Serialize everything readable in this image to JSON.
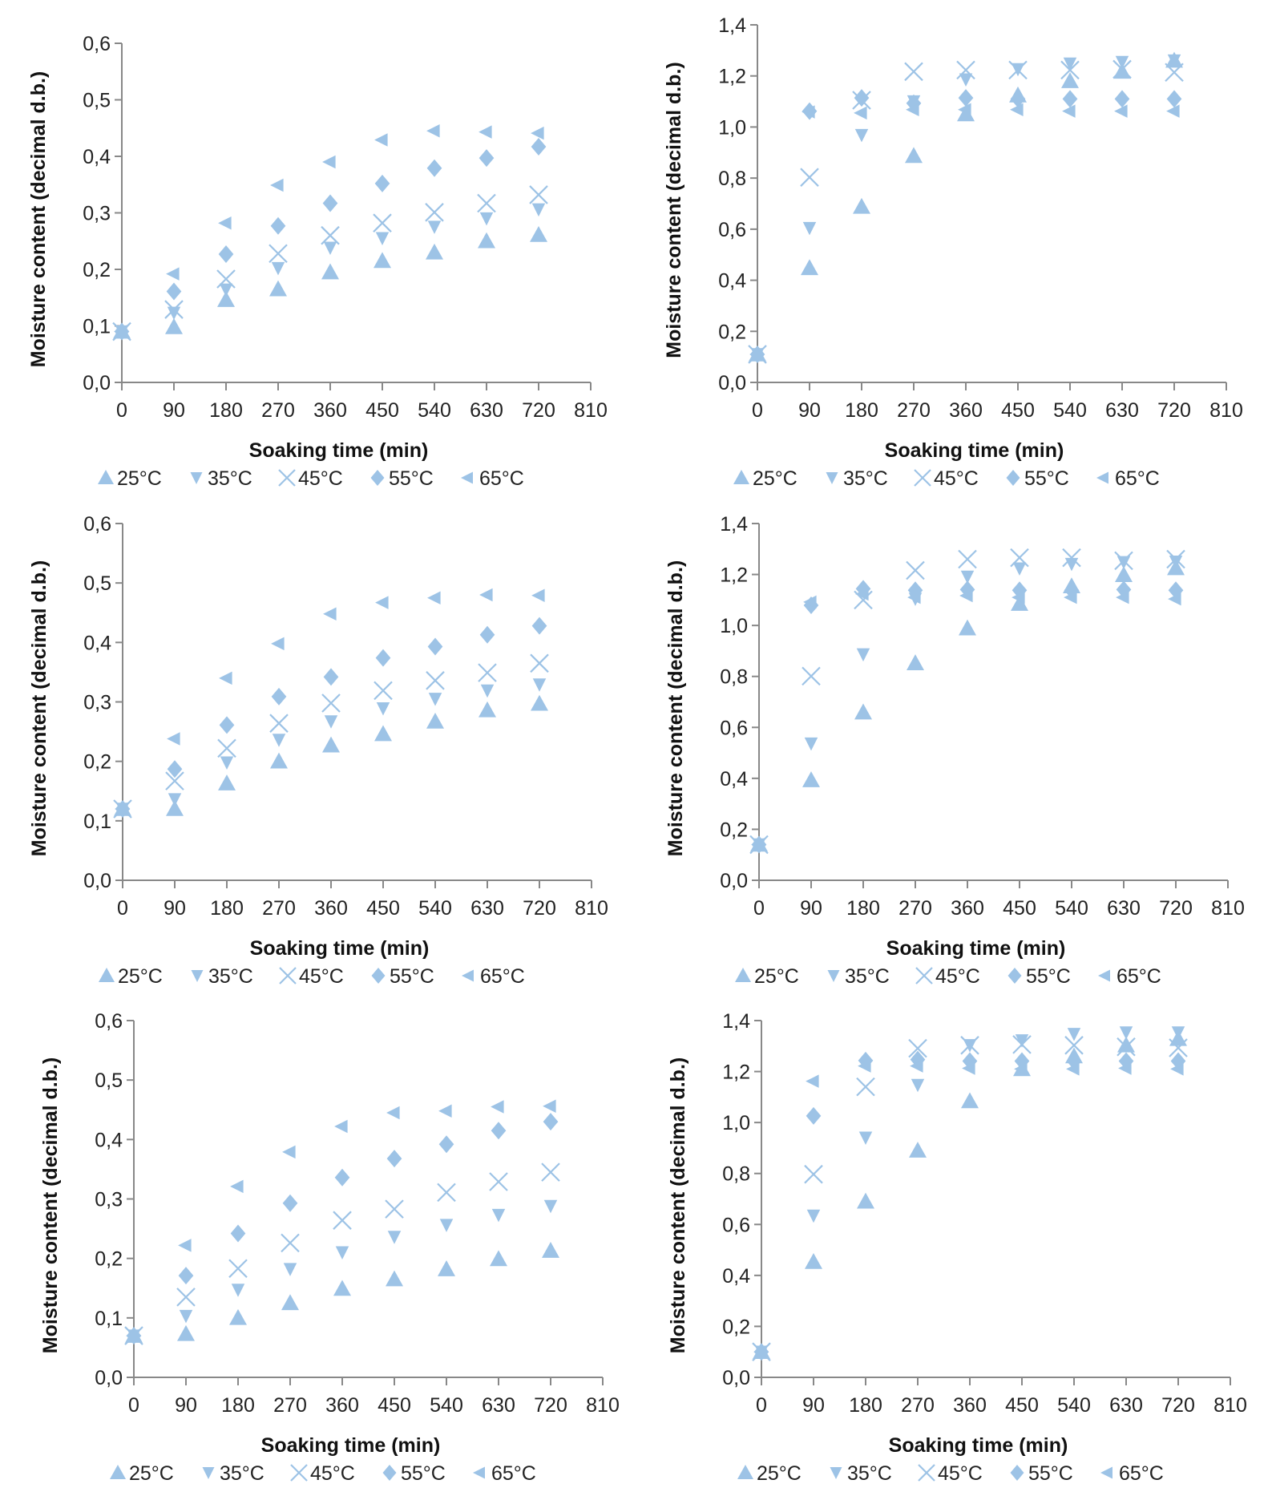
{
  "marker_color": "#9dc3e6",
  "axis_color": "#888888",
  "chart_data": [
    {
      "type": "scatter",
      "xlabel": "Soaking time (min)",
      "ylabel": "Moisture content (decimal d.b.)",
      "xlim": [
        0,
        810
      ],
      "ylim": [
        0,
        0.6
      ],
      "xticks": [
        "0",
        "90",
        "180",
        "270",
        "360",
        "450",
        "540",
        "630",
        "720",
        "810"
      ],
      "yticks": [
        "0,0",
        "0,1",
        "0,2",
        "0,3",
        "0,4",
        "0,5",
        "0,6"
      ],
      "legend": "bottom",
      "x": [
        0,
        90,
        180,
        270,
        360,
        450,
        540,
        630,
        720
      ],
      "series": [
        {
          "name": "25°C",
          "marker": "triangle-up",
          "values": [
            0.09,
            0.098,
            0.146,
            0.165,
            0.195,
            0.215,
            0.23,
            0.25,
            0.261
          ]
        },
        {
          "name": "35°C",
          "marker": "triangle-down",
          "values": [
            0.09,
            0.123,
            0.164,
            0.202,
            0.238,
            0.255,
            0.275,
            0.29,
            0.306
          ]
        },
        {
          "name": "45°C",
          "marker": "x",
          "values": [
            0.09,
            0.129,
            0.183,
            0.228,
            0.26,
            0.282,
            0.301,
            0.317,
            0.332
          ]
        },
        {
          "name": "55°C",
          "marker": "diamond",
          "values": [
            0.09,
            0.161,
            0.227,
            0.277,
            0.317,
            0.352,
            0.379,
            0.397,
            0.417
          ]
        },
        {
          "name": "65°C",
          "marker": "triangle-left",
          "values": [
            0.09,
            0.192,
            0.282,
            0.349,
            0.39,
            0.429,
            0.445,
            0.443,
            0.441
          ]
        }
      ]
    },
    {
      "type": "scatter",
      "xlabel": "Soaking time (min)",
      "ylabel": "Moisture content (decimal d.b.)",
      "xlim": [
        0,
        810
      ],
      "ylim": [
        0,
        1.4
      ],
      "xticks": [
        "0",
        "90",
        "180",
        "270",
        "360",
        "450",
        "540",
        "630",
        "720",
        "810"
      ],
      "yticks": [
        "0,0",
        "0,2",
        "0,4",
        "0,6",
        "0,8",
        "1,0",
        "1,2",
        "1,4"
      ],
      "legend": "bottom",
      "x": [
        0,
        90,
        180,
        270,
        360,
        450,
        540,
        630,
        720
      ],
      "series": [
        {
          "name": "25°C",
          "marker": "triangle-up",
          "values": [
            0.11,
            0.448,
            0.688,
            0.887,
            1.05,
            1.124,
            1.18,
            1.217,
            1.26
          ]
        },
        {
          "name": "35°C",
          "marker": "triangle-down",
          "values": [
            0.11,
            0.604,
            0.968,
            1.1,
            1.186,
            1.226,
            1.248,
            1.254,
            1.26
          ]
        },
        {
          "name": "45°C",
          "marker": "x",
          "values": [
            0.11,
            0.803,
            1.105,
            1.217,
            1.223,
            1.223,
            1.223,
            1.226,
            1.214
          ]
        },
        {
          "name": "55°C",
          "marker": "diamond",
          "values": [
            0.11,
            1.062,
            1.114,
            1.093,
            1.114,
            1.11,
            1.11,
            1.11,
            1.11
          ]
        },
        {
          "name": "65°C",
          "marker": "triangle-left",
          "values": [
            0.11,
            1.059,
            1.055,
            1.068,
            1.068,
            1.068,
            1.062,
            1.062,
            1.062
          ]
        }
      ]
    },
    {
      "type": "scatter",
      "xlabel": "Soaking time (min)",
      "ylabel": "Moisture content (decimal d.b.)",
      "xlim": [
        0,
        810
      ],
      "ylim": [
        0,
        0.6
      ],
      "xticks": [
        "0",
        "90",
        "180",
        "270",
        "360",
        "450",
        "540",
        "630",
        "720",
        "810"
      ],
      "yticks": [
        "0,0",
        "0,1",
        "0,2",
        "0,3",
        "0,4",
        "0,5",
        "0,6"
      ],
      "legend": "bottom",
      "x": [
        0,
        90,
        180,
        270,
        360,
        450,
        540,
        630,
        720
      ],
      "series": [
        {
          "name": "25°C",
          "marker": "triangle-up",
          "values": [
            0.12,
            0.12,
            0.163,
            0.2,
            0.227,
            0.246,
            0.267,
            0.286,
            0.297
          ]
        },
        {
          "name": "35°C",
          "marker": "triangle-down",
          "values": [
            0.12,
            0.136,
            0.198,
            0.236,
            0.267,
            0.289,
            0.305,
            0.319,
            0.329
          ]
        },
        {
          "name": "45°C",
          "marker": "x",
          "values": [
            0.12,
            0.167,
            0.222,
            0.264,
            0.298,
            0.319,
            0.336,
            0.349,
            0.365
          ]
        },
        {
          "name": "55°C",
          "marker": "diamond",
          "values": [
            0.12,
            0.187,
            0.261,
            0.309,
            0.342,
            0.374,
            0.393,
            0.413,
            0.428
          ]
        },
        {
          "name": "65°C",
          "marker": "triangle-left",
          "values": [
            0.12,
            0.238,
            0.34,
            0.398,
            0.448,
            0.467,
            0.475,
            0.48,
            0.479
          ]
        }
      ]
    },
    {
      "type": "scatter",
      "xlabel": "Soaking time (min)",
      "ylabel": "Moisture content (decimal d.b.)",
      "xlim": [
        0,
        810
      ],
      "ylim": [
        0,
        1.4
      ],
      "xticks": [
        "0",
        "90",
        "180",
        "270",
        "360",
        "450",
        "540",
        "630",
        "720",
        "810"
      ],
      "yticks": [
        "0,0",
        "0,2",
        "0,4",
        "0,6",
        "0,8",
        "1,0",
        "1,2",
        "1,4"
      ],
      "legend": "bottom",
      "x": [
        0,
        90,
        180,
        270,
        360,
        450,
        540,
        630,
        720
      ],
      "series": [
        {
          "name": "25°C",
          "marker": "triangle-up",
          "values": [
            0.14,
            0.393,
            0.659,
            0.852,
            0.989,
            1.085,
            1.154,
            1.198,
            1.225
          ]
        },
        {
          "name": "35°C",
          "marker": "triangle-down",
          "values": [
            0.14,
            0.536,
            0.886,
            1.104,
            1.191,
            1.223,
            1.241,
            1.248,
            1.25
          ]
        },
        {
          "name": "45°C",
          "marker": "x",
          "values": [
            0.14,
            0.801,
            1.1,
            1.216,
            1.26,
            1.266,
            1.266,
            1.254,
            1.26
          ]
        },
        {
          "name": "55°C",
          "marker": "diamond",
          "values": [
            0.14,
            1.079,
            1.144,
            1.138,
            1.141,
            1.138,
            1.138,
            1.141,
            1.138
          ]
        },
        {
          "name": "65°C",
          "marker": "triangle-left",
          "values": [
            0.14,
            1.092,
            1.123,
            1.11,
            1.117,
            1.11,
            1.11,
            1.11,
            1.104
          ]
        }
      ]
    },
    {
      "type": "scatter",
      "xlabel": "Soaking time (min)",
      "ylabel": "Moisture content (decimal d.b.)",
      "xlim": [
        0,
        810
      ],
      "ylim": [
        0,
        0.6
      ],
      "xticks": [
        "0",
        "90",
        "180",
        "270",
        "360",
        "450",
        "540",
        "630",
        "720",
        "810"
      ],
      "yticks": [
        "0,0",
        "0,1",
        "0,2",
        "0,3",
        "0,4",
        "0,5",
        "0,6"
      ],
      "legend": "bottom",
      "x": [
        0,
        90,
        180,
        270,
        360,
        450,
        540,
        630,
        720
      ],
      "series": [
        {
          "name": "25°C",
          "marker": "triangle-up",
          "values": [
            0.07,
            0.073,
            0.1,
            0.125,
            0.149,
            0.165,
            0.182,
            0.199,
            0.213
          ]
        },
        {
          "name": "35°C",
          "marker": "triangle-down",
          "values": [
            0.07,
            0.103,
            0.147,
            0.182,
            0.21,
            0.236,
            0.256,
            0.273,
            0.288
          ]
        },
        {
          "name": "45°C",
          "marker": "x",
          "values": [
            0.07,
            0.135,
            0.183,
            0.226,
            0.264,
            0.283,
            0.311,
            0.329,
            0.345
          ]
        },
        {
          "name": "55°C",
          "marker": "diamond",
          "values": [
            0.07,
            0.171,
            0.242,
            0.293,
            0.336,
            0.368,
            0.392,
            0.415,
            0.43
          ]
        },
        {
          "name": "65°C",
          "marker": "triangle-left",
          "values": [
            0.07,
            0.222,
            0.321,
            0.379,
            0.422,
            0.445,
            0.448,
            0.455,
            0.456
          ]
        }
      ]
    },
    {
      "type": "scatter",
      "xlabel": "Soaking time (min)",
      "ylabel": "Moisture content (decimal d.b.)",
      "xlim": [
        0,
        810
      ],
      "ylim": [
        0,
        1.4
      ],
      "xticks": [
        "0",
        "90",
        "180",
        "270",
        "360",
        "450",
        "540",
        "630",
        "720",
        "810"
      ],
      "yticks": [
        "0,0",
        "0,2",
        "0,4",
        "0,6",
        "0,8",
        "1,0",
        "1,2",
        "1,4"
      ],
      "legend": "bottom",
      "x": [
        0,
        90,
        180,
        270,
        360,
        450,
        540,
        630,
        720
      ],
      "series": [
        {
          "name": "25°C",
          "marker": "triangle-up",
          "values": [
            0.1,
            0.453,
            0.69,
            0.89,
            1.084,
            1.21,
            1.26,
            1.303,
            1.328
          ]
        },
        {
          "name": "35°C",
          "marker": "triangle-down",
          "values": [
            0.1,
            0.634,
            0.94,
            1.147,
            1.303,
            1.322,
            1.347,
            1.353,
            1.353
          ]
        },
        {
          "name": "45°C",
          "marker": "x",
          "values": [
            0.1,
            0.797,
            1.14,
            1.291,
            1.303,
            1.306,
            1.303,
            1.297,
            1.293
          ]
        },
        {
          "name": "55°C",
          "marker": "diamond",
          "values": [
            0.1,
            1.026,
            1.243,
            1.247,
            1.241,
            1.241,
            1.241,
            1.241,
            1.241
          ]
        },
        {
          "name": "65°C",
          "marker": "triangle-left",
          "values": [
            0.1,
            1.162,
            1.222,
            1.222,
            1.213,
            1.21,
            1.21,
            1.213,
            1.21
          ]
        }
      ]
    }
  ]
}
